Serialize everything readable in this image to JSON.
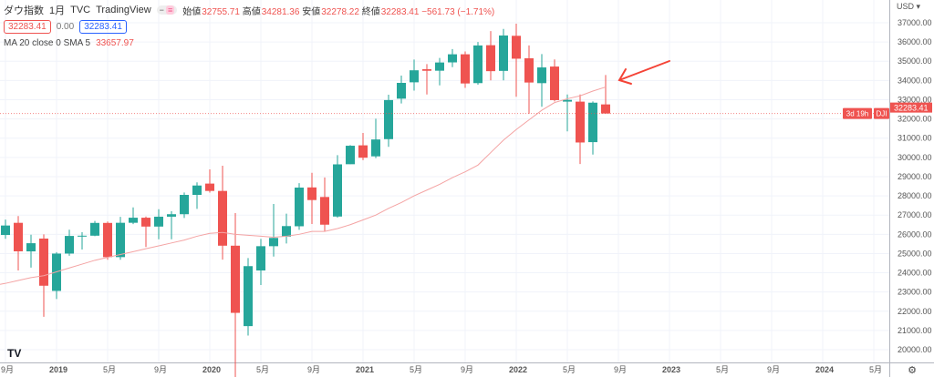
{
  "legend": {
    "symbol": "ダウ指数",
    "interval": "1月",
    "exchange": "TVC",
    "source": "TradingView",
    "open_label": "始値",
    "open": "32755.71",
    "high_label": "高値",
    "high": "34281.36",
    "low_label": "安値",
    "low": "32278.22",
    "close_label": "終値",
    "close": "32283.41",
    "change": "−561.73 (−1.71%)",
    "bid": "32283.41",
    "spread": "0.00",
    "ask": "32283.41",
    "ma_label": "MA 20 close 0 SMA 5",
    "ma_value": "33657.97"
  },
  "axis": {
    "currency": "USD",
    "price_label_symbol": "DJI",
    "price_label": "32283.41",
    "countdown": "3d 19h"
  },
  "colors": {
    "up": "#26a69a",
    "down": "#ef5350",
    "sma": "#f4a3a3",
    "annotation": "#f44336"
  },
  "chart_data": {
    "type": "candlestick",
    "title": "ダウ指数 1月 TVC",
    "ylim": [
      19600,
      37600
    ],
    "yticks": [
      "20000.00",
      "21000.00",
      "22000.00",
      "23000.00",
      "24000.00",
      "25000.00",
      "26000.00",
      "27000.00",
      "28000.00",
      "29000.00",
      "30000.00",
      "31000.00",
      "32000.00",
      "33000.00",
      "34000.00",
      "35000.00",
      "36000.00",
      "37000.00"
    ],
    "xticks": [
      {
        "m": 0,
        "label": "9月"
      },
      {
        "m": 4,
        "label": "2019"
      },
      {
        "m": 8,
        "label": "5月"
      },
      {
        "m": 12,
        "label": "9月"
      },
      {
        "m": 16,
        "label": "2020"
      },
      {
        "m": 20,
        "label": "5月"
      },
      {
        "m": 24,
        "label": "9月"
      },
      {
        "m": 28,
        "label": "2021"
      },
      {
        "m": 32,
        "label": "5月"
      },
      {
        "m": 36,
        "label": "9月"
      },
      {
        "m": 40,
        "label": "2022"
      },
      {
        "m": 44,
        "label": "5月"
      },
      {
        "m": 48,
        "label": "9月"
      },
      {
        "m": 52,
        "label": "2023"
      },
      {
        "m": 56,
        "label": "5月"
      },
      {
        "m": 60,
        "label": "9月"
      },
      {
        "m": 64,
        "label": "2024"
      },
      {
        "m": 68,
        "label": "5月"
      }
    ],
    "first_month": "2018-09",
    "ohlc": [
      [
        25965,
        26769,
        25766,
        26458
      ],
      [
        26598,
        26951,
        24122,
        25116
      ],
      [
        25113,
        25980,
        24268,
        25538
      ],
      [
        25779,
        26000,
        21713,
        23327
      ],
      [
        23058,
        25075,
        22638,
        24999
      ],
      [
        24999,
        26241,
        24883,
        25916
      ],
      [
        25916,
        26110,
        25208,
        25929
      ],
      [
        25929,
        26696,
        25900,
        26593
      ],
      [
        26593,
        26668,
        24680,
        24815
      ],
      [
        24815,
        26907,
        24680,
        26600
      ],
      [
        26600,
        27399,
        26530,
        26864
      ],
      [
        26864,
        26928,
        25339,
        26403
      ],
      [
        26403,
        27307,
        25743,
        26917
      ],
      [
        26917,
        27207,
        25743,
        27046
      ],
      [
        27046,
        28175,
        26850,
        28051
      ],
      [
        28051,
        28701,
        27325,
        28538
      ],
      [
        28638,
        29374,
        28169,
        28256
      ],
      [
        28256,
        29568,
        24681,
        25409
      ],
      [
        25409,
        27102,
        18213,
        21917
      ],
      [
        21227,
        24765,
        20735,
        24346
      ],
      [
        24120,
        25758,
        23361,
        25383
      ],
      [
        25383,
        27580,
        24843,
        25813
      ],
      [
        25879,
        27072,
        25523,
        26428
      ],
      [
        26419,
        28659,
        26234,
        28430
      ],
      [
        28439,
        29199,
        26537,
        27782
      ],
      [
        27941,
        28958,
        26143,
        26501
      ],
      [
        26925,
        30116,
        26866,
        29638
      ],
      [
        29645,
        30637,
        29648,
        30606
      ],
      [
        30627,
        31272,
        29856,
        29983
      ],
      [
        30055,
        32009,
        29960,
        30932
      ],
      [
        30949,
        33259,
        30547,
        32981
      ],
      [
        33054,
        34256,
        32803,
        33875
      ],
      [
        33904,
        35091,
        33473,
        34529
      ],
      [
        34584,
        34849,
        33272,
        34503
      ],
      [
        34507,
        35171,
        33742,
        34935
      ],
      [
        34940,
        35631,
        34690,
        35361
      ],
      [
        35361,
        35510,
        33613,
        33844
      ],
      [
        33862,
        36000,
        33779,
        35820
      ],
      [
        35833,
        36565,
        34006,
        34484
      ],
      [
        34498,
        36679,
        34006,
        36338
      ],
      [
        36322,
        36953,
        33150,
        35132
      ],
      [
        35152,
        35825,
        32272,
        33893
      ],
      [
        33860,
        35372,
        32632,
        34678
      ],
      [
        34723,
        35092,
        32912,
        32977
      ],
      [
        32900,
        33269,
        31354,
        32990
      ],
      [
        32899,
        33272,
        29653,
        30775
      ],
      [
        30793,
        32910,
        30144,
        32845
      ],
      [
        32755,
        34281,
        32278,
        32283
      ]
    ],
    "sma20": [
      23450,
      23600,
      23750,
      23850,
      24050,
      24250,
      24450,
      24650,
      24800,
      24950,
      25100,
      25250,
      25400,
      25550,
      25700,
      25900,
      26050,
      26100,
      26000,
      25950,
      25900,
      25850,
      25900,
      26000,
      26150,
      26150,
      26300,
      26500,
      26750,
      27000,
      27350,
      27650,
      28000,
      28300,
      28600,
      28950,
      29250,
      29600,
      30250,
      30900,
      31450,
      31950,
      32450,
      32850,
      33050,
      33200,
      33450,
      33658
    ],
    "last_price": 32283.41
  }
}
